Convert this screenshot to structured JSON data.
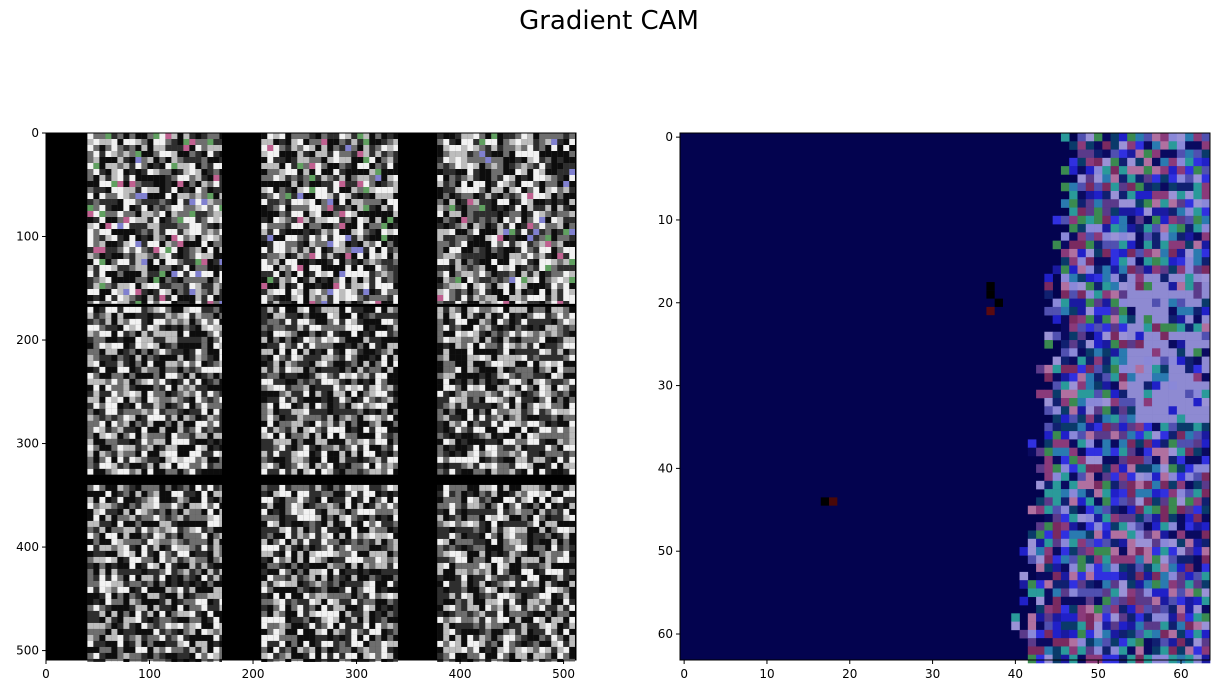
{
  "figure": {
    "title": "Gradient CAM"
  },
  "chart_data": [
    {
      "type": "heatmap",
      "title": "",
      "xlabel": "",
      "ylabel": "",
      "xlim": [
        0,
        511
      ],
      "ylim": [
        511,
        0
      ],
      "xticks": [
        "0",
        "100",
        "200",
        "300",
        "400",
        "500"
      ],
      "yticks": [
        "0",
        "100",
        "200",
        "300",
        "400",
        "500"
      ],
      "grid": false,
      "content": "3x3 mosaic of grayscale satellite image tiles on black background"
    },
    {
      "type": "heatmap",
      "title": "",
      "xlabel": "",
      "ylabel": "",
      "xlim": [
        0,
        63
      ],
      "ylim": [
        63,
        0
      ],
      "xticks": [
        "0",
        "10",
        "20",
        "30",
        "40",
        "50",
        "60"
      ],
      "yticks": [
        "0",
        "10",
        "20",
        "30",
        "40",
        "50",
        "60"
      ],
      "grid": false,
      "background_color": "#03034f",
      "content": "dark blue field with noisy multicolor pixels on right side (x > ~40)"
    }
  ]
}
